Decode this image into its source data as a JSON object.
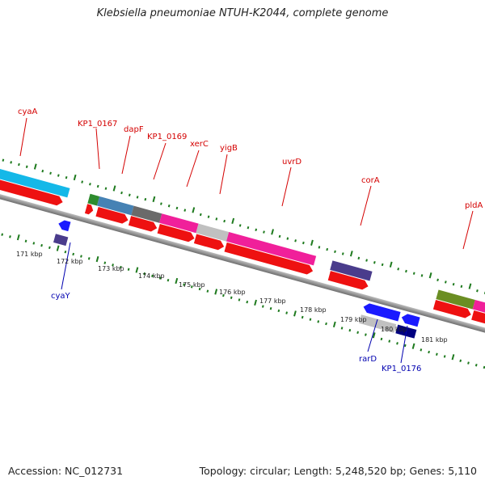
{
  "title": "Klebsiella pneumoniae NTUH-K2044, complete genome",
  "footer": {
    "accession": "Accession: NC_012731",
    "topology": "Topology: circular; Length: 5,248,520 bp; Genes: 5,110"
  },
  "colors": {
    "ruler_tick": "#1e7a1e",
    "label_forward": "#d40000",
    "label_reverse": "#0000b0",
    "backbone": "#8a8a8a"
  },
  "kbp_ticks": [
    "171 kbp",
    "172 kbp",
    "173 kbp",
    "174 kbp",
    "175 kbp",
    "176 kbp",
    "177 kbp",
    "178 kbp",
    "179 kbp",
    "180 kbp",
    "181 kbp"
  ],
  "forward_labels": [
    "cyaA",
    "KP1_0167",
    "dapF",
    "KP1_0169",
    "xerC",
    "yigB",
    "uvrD",
    "corA",
    "pldA"
  ],
  "reverse_labels": [
    "cyaY",
    "rarD",
    "KP1_0176"
  ]
}
